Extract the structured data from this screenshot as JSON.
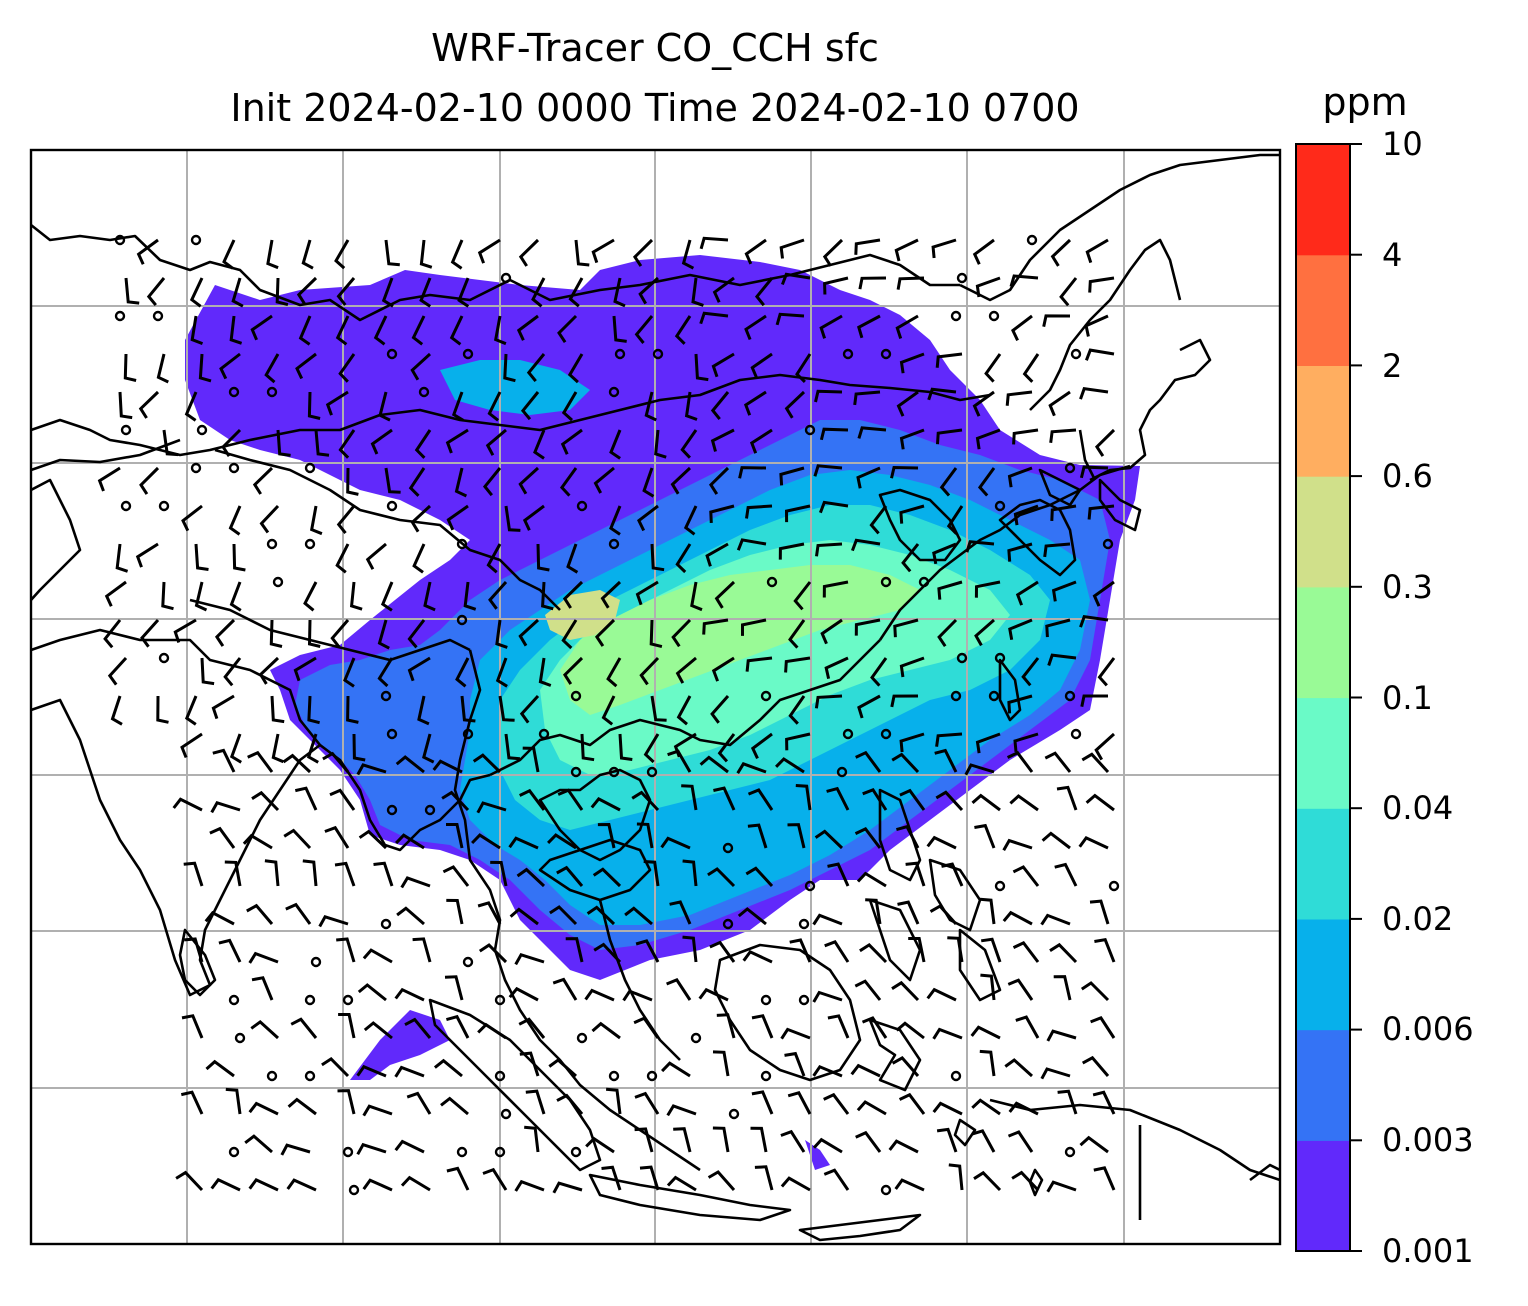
{
  "title": {
    "line1": "WRF-Tracer CO_CCH sfc",
    "line2": "Init 2024-02-10 0000 Time 2024-02-10 0700"
  },
  "colorbar": {
    "units": "ppm",
    "levels": [
      "0.001",
      "0.003",
      "0.006",
      "0.02",
      "0.04",
      "0.1",
      "0.3",
      "0.6",
      "2",
      "4",
      "10"
    ],
    "colors": [
      "#6129fb",
      "#3473f5",
      "#07b0eb",
      "#2fdcd7",
      "#6afac7",
      "#99fa96",
      "#d0e08a",
      "#ffae60",
      "#ff7040",
      "#ff2a1a"
    ]
  },
  "map": {
    "land_outline_color": "#000000",
    "gridline_color": "#b0b0b0",
    "wind_barb_color": "#000000",
    "no_data_color": "#ffffff"
  }
}
